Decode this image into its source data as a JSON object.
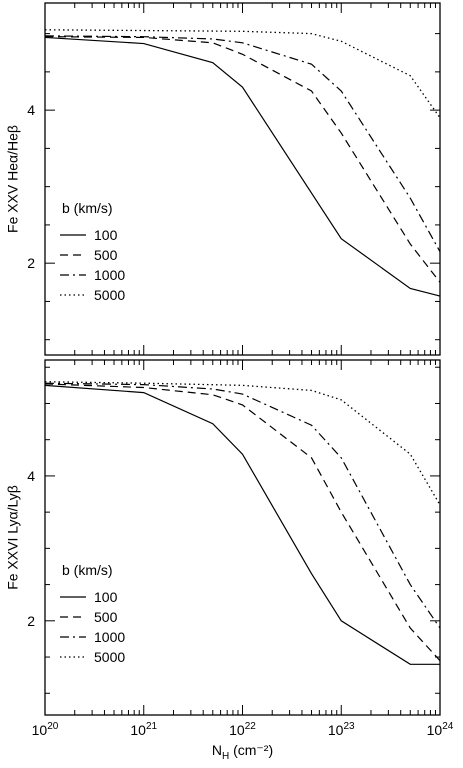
{
  "chart_data": [
    {
      "type": "line",
      "ylabel": "Fe XXV Heα/Heβ",
      "xscale": "log",
      "xlim": [
        1e+20,
        1e+24
      ],
      "ylim": [
        0.8,
        5.4
      ],
      "yticks": [
        2,
        4
      ],
      "ytick_labels": [
        "2",
        "4"
      ],
      "legend": {
        "title": "b (km/s)",
        "placement": "lower-left",
        "entries": [
          "100",
          "500",
          "1000",
          "5000"
        ]
      },
      "grid": false,
      "series": [
        {
          "name": "100",
          "style": "solid",
          "x": [
            1e+20,
            1e+21,
            5e+21,
            1e+22,
            1e+23,
            5e+23,
            1e+24
          ],
          "y": [
            4.95,
            4.87,
            4.62,
            4.3,
            2.32,
            1.67,
            1.57
          ]
        },
        {
          "name": "500",
          "style": "dashed",
          "x": [
            1e+20,
            1e+21,
            5e+21,
            1e+22,
            5e+22,
            1e+23,
            5e+23,
            1e+24
          ],
          "y": [
            4.96,
            4.95,
            4.88,
            4.73,
            4.25,
            3.7,
            2.25,
            1.75
          ]
        },
        {
          "name": "1000",
          "style": "dashdot",
          "x": [
            1e+20,
            1e+21,
            5e+21,
            1e+22,
            5e+22,
            1e+23,
            5e+23,
            1e+24
          ],
          "y": [
            4.97,
            4.96,
            4.93,
            4.88,
            4.6,
            4.25,
            2.85,
            2.15
          ]
        },
        {
          "name": "5000",
          "style": "dotted",
          "x": [
            1e+20,
            1e+21,
            1e+22,
            5e+22,
            1e+23,
            5e+23,
            1e+24
          ],
          "y": [
            5.05,
            5.04,
            5.03,
            5.0,
            4.9,
            4.45,
            3.9
          ]
        }
      ]
    },
    {
      "type": "line",
      "xlabel": "N_H (cm⁻²)",
      "ylabel": "Fe XXVI Lyα/Lyβ",
      "xscale": "log",
      "xlim": [
        1e+20,
        1e+24
      ],
      "ylim": [
        0.7,
        5.6
      ],
      "yticks": [
        2,
        4
      ],
      "ytick_labels": [
        "2",
        "4"
      ],
      "xtick_labels": [
        {
          "base": "10",
          "exp": "20"
        },
        {
          "base": "10",
          "exp": "21"
        },
        {
          "base": "10",
          "exp": "22"
        },
        {
          "base": "10",
          "exp": "23"
        },
        {
          "base": "10",
          "exp": "24"
        }
      ],
      "legend": {
        "title": "b (km/s)",
        "placement": "lower-left",
        "entries": [
          "100",
          "500",
          "1000",
          "5000"
        ]
      },
      "grid": false,
      "series": [
        {
          "name": "100",
          "style": "solid",
          "x": [
            1e+20,
            1e+21,
            5e+21,
            1e+22,
            5e+22,
            1e+23,
            5e+23,
            1e+24
          ],
          "y": [
            5.25,
            5.15,
            4.72,
            4.3,
            2.65,
            2.0,
            1.4,
            1.4
          ]
        },
        {
          "name": "500",
          "style": "dashed",
          "x": [
            1e+20,
            1e+21,
            5e+21,
            1e+22,
            5e+22,
            1e+23,
            5e+23,
            1e+24
          ],
          "y": [
            5.27,
            5.22,
            5.12,
            4.98,
            4.25,
            3.5,
            1.9,
            1.45
          ]
        },
        {
          "name": "1000",
          "style": "dashdot",
          "x": [
            1e+20,
            1e+21,
            5e+21,
            1e+22,
            5e+22,
            1e+23,
            5e+23,
            1e+24
          ],
          "y": [
            5.28,
            5.26,
            5.2,
            5.13,
            4.7,
            4.25,
            2.5,
            1.9
          ]
        },
        {
          "name": "5000",
          "style": "dotted",
          "x": [
            1e+20,
            1e+21,
            1e+22,
            5e+22,
            1e+23,
            5e+23,
            1e+24
          ],
          "y": [
            5.3,
            5.28,
            5.25,
            5.18,
            5.05,
            4.3,
            3.6
          ]
        }
      ]
    }
  ]
}
